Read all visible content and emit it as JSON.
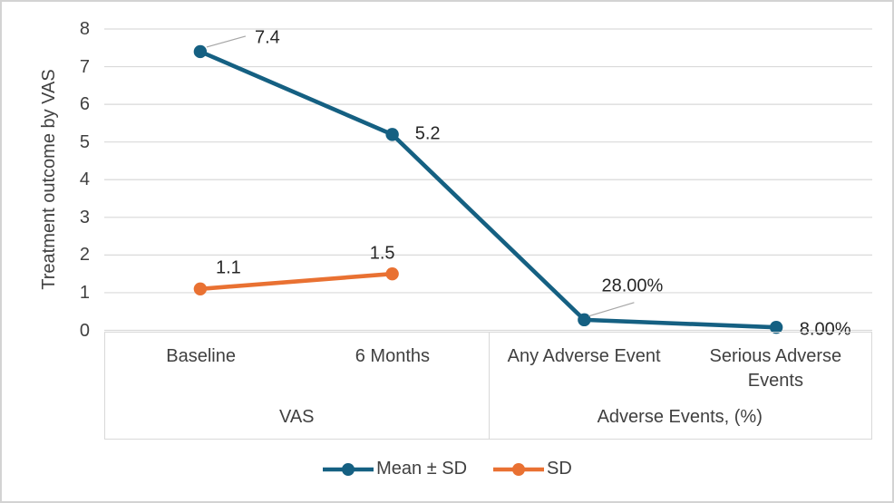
{
  "chart_data": {
    "type": "line",
    "title": "",
    "ylabel": "Treatment outcome by VAS",
    "xlabel": "",
    "ylim": [
      0,
      8
    ],
    "yticks": [
      0,
      1,
      2,
      3,
      4,
      5,
      6,
      7,
      8
    ],
    "grid": true,
    "legend_position": "bottom",
    "categories": [
      "Baseline",
      "6 Months",
      "Any Adverse Event",
      "Serious Adverse Events"
    ],
    "category_groups": [
      {
        "label": "VAS"
      },
      {
        "label": "Adverse Events, (%)"
      }
    ],
    "series": [
      {
        "name": "Mean ± SD",
        "color": "#156082",
        "values": [
          7.4,
          5.2,
          0.28,
          0.08
        ],
        "point_labels": [
          "7.4",
          "5.2",
          "28.00%",
          "8.00%"
        ]
      },
      {
        "name": "SD",
        "color": "#E97132",
        "values": [
          1.1,
          1.5,
          null,
          null
        ],
        "point_labels": [
          "1.1",
          "1.5",
          null,
          null
        ]
      }
    ]
  },
  "colors": {
    "gridline": "#D9D9D9",
    "axis_text": "#404040",
    "data_label": "#262626",
    "leader": "#A6A6A6",
    "frame_border": "#D3D3D3"
  }
}
